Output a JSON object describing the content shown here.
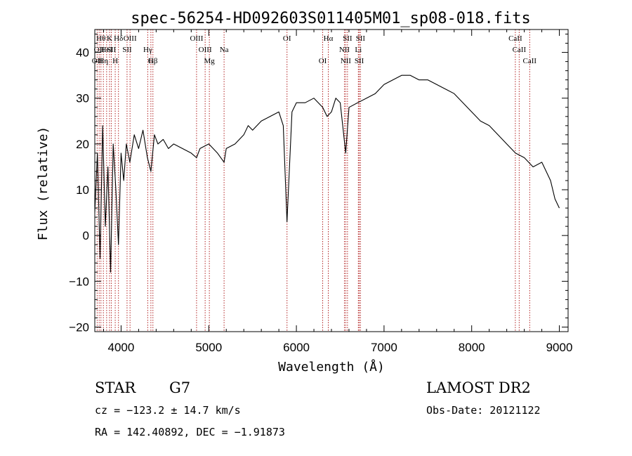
{
  "chart_data": {
    "type": "line",
    "title": "spec-56254-HD092603S011405M01_sp08-018.fits",
    "xlabel": "Wavelength (Å)",
    "ylabel": "Flux (relative)",
    "xlim": [
      3700,
      9100
    ],
    "ylim": [
      -21,
      45
    ],
    "x_ticks": [
      4000,
      5000,
      6000,
      7000,
      8000,
      9000
    ],
    "y_ticks": [
      -20,
      -10,
      0,
      10,
      20,
      30,
      40
    ],
    "grid": false,
    "legend": "none",
    "line_color": "#000000",
    "marker_color": "#b22222",
    "series": [
      {
        "x": [
          3700,
          3730,
          3760,
          3790,
          3820,
          3850,
          3880,
          3910,
          3940,
          3970,
          4000,
          4030,
          4060,
          4100,
          4150,
          4200,
          4250,
          4300,
          4340,
          4380,
          4420,
          4480,
          4540,
          4600,
          4700,
          4800,
          4861,
          4900,
          5000,
          5100,
          5175,
          5200,
          5300,
          5400,
          5450,
          5500,
          5600,
          5700,
          5800,
          5850,
          5893,
          5950,
          6000,
          6100,
          6200,
          6300,
          6350,
          6400,
          6450,
          6500,
          6563,
          6600,
          6700,
          6800,
          6900,
          7000,
          7100,
          7200,
          7300,
          7400,
          7500,
          7600,
          7700,
          7800,
          7900,
          8000,
          8100,
          8200,
          8300,
          8400,
          8500,
          8600,
          8700,
          8800,
          8900,
          8950,
          9000
        ],
        "y": [
          5,
          18,
          -5,
          24,
          2,
          15,
          -8,
          20,
          10,
          -2,
          18,
          12,
          20,
          16,
          22,
          19,
          23,
          17,
          14,
          22,
          20,
          21,
          19,
          20,
          19,
          18,
          17,
          19,
          20,
          18,
          16,
          19,
          20,
          22,
          24,
          23,
          25,
          26,
          27,
          24,
          3,
          27,
          29,
          29,
          30,
          28,
          26,
          27,
          30,
          29,
          18,
          28,
          29,
          30,
          31,
          33,
          34,
          35,
          35,
          34,
          34,
          33,
          32,
          31,
          29,
          27,
          25,
          24,
          22,
          20,
          18,
          17,
          15,
          16,
          12,
          8,
          6
        ]
      }
    ],
    "line_markers": [
      {
        "x": 3727,
        "label": "OII",
        "row": 2
      },
      {
        "x": 3750,
        "label": "OII",
        "row": 1
      },
      {
        "x": 3770,
        "label": "Hθ",
        "row": 0
      },
      {
        "x": 3798,
        "label": "Hη",
        "row": 2
      },
      {
        "x": 3835,
        "label": "HeI",
        "row": 1
      },
      {
        "x": 3868,
        "label": "K",
        "row": 0
      },
      {
        "x": 3889,
        "label": "SII",
        "row": 1
      },
      {
        "x": 3933,
        "label": "H",
        "row": 2
      },
      {
        "x": 3970,
        "label": "Hδ",
        "row": 0
      },
      {
        "x": 4068,
        "label": "SII",
        "row": 1
      },
      {
        "x": 4102,
        "label": "OIII",
        "row": 0
      },
      {
        "x": 4304,
        "label": "Hγ",
        "row": 1
      },
      {
        "x": 4340,
        "label": "G",
        "row": 2
      },
      {
        "x": 4363,
        "label": "Hβ",
        "row": 2
      },
      {
        "x": 4861,
        "label": "OIII",
        "row": 0
      },
      {
        "x": 4959,
        "label": "OIII",
        "row": 1
      },
      {
        "x": 5007,
        "label": "Mg",
        "row": 2
      },
      {
        "x": 5175,
        "label": "Na",
        "row": 1
      },
      {
        "x": 5893,
        "label": "OI",
        "row": 0
      },
      {
        "x": 6300,
        "label": "OI",
        "row": 2
      },
      {
        "x": 6364,
        "label": "Hα",
        "row": 0
      },
      {
        "x": 6548,
        "label": "NII",
        "row": 1
      },
      {
        "x": 6563,
        "label": "NII",
        "row": 2
      },
      {
        "x": 6583,
        "label": "SII",
        "row": 0
      },
      {
        "x": 6707,
        "label": "Li",
        "row": 1
      },
      {
        "x": 6717,
        "label": "SII",
        "row": 2
      },
      {
        "x": 6731,
        "label": "SII",
        "row": 0
      },
      {
        "x": 8498,
        "label": "CaII",
        "row": 0
      },
      {
        "x": 8542,
        "label": "CaII",
        "row": 1
      },
      {
        "x": 8662,
        "label": "CaII",
        "row": 2
      }
    ]
  },
  "info": {
    "class_label": "STAR",
    "subclass": "G7",
    "survey": "LAMOST DR2",
    "redshift_line": "cz = −123.2 ± 14.7 km/s",
    "obs_date": "Obs-Date: 20121122",
    "coords": "RA = 142.40892, DEC =  −1.91873"
  }
}
